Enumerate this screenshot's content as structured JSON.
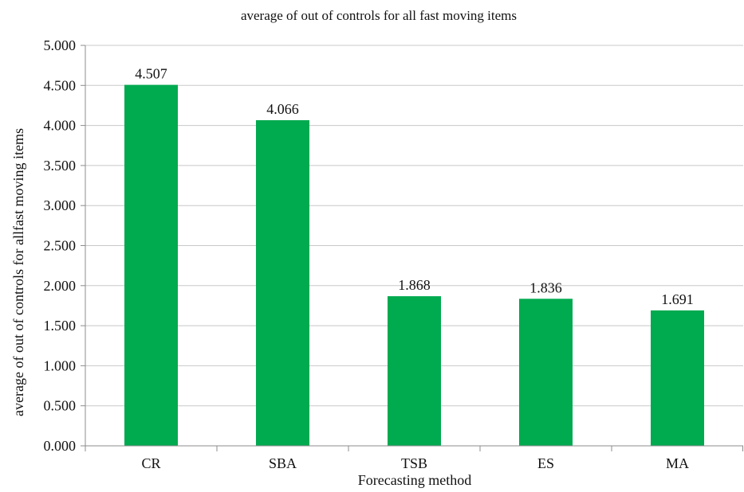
{
  "chart_data": {
    "type": "bar",
    "title": "average of out of controls for all fast moving items",
    "xlabel": "Forecasting method",
    "ylabel": "average of out of controls for allfast moving items",
    "categories": [
      "CR",
      "SBA",
      "TSB",
      "ES",
      "MA"
    ],
    "values": [
      4.507,
      4.066,
      1.868,
      1.836,
      1.691
    ],
    "data_labels": [
      "4.507",
      "4.066",
      "1.868",
      "1.836",
      "1.691"
    ],
    "ylim": [
      0,
      5
    ],
    "yticks": [
      0,
      0.5,
      1,
      1.5,
      2,
      2.5,
      3,
      3.5,
      4,
      4.5,
      5
    ],
    "ytick_labels": [
      "0.000",
      "0.500",
      "1.000",
      "1.500",
      "2.000",
      "2.500",
      "3.000",
      "3.500",
      "4.000",
      "4.500",
      "5.000"
    ],
    "grid": true,
    "legend": "none",
    "bar_color": "#00AA4F",
    "grid_color": "#C8C8C8",
    "axis_color": "#8C8C8C"
  }
}
